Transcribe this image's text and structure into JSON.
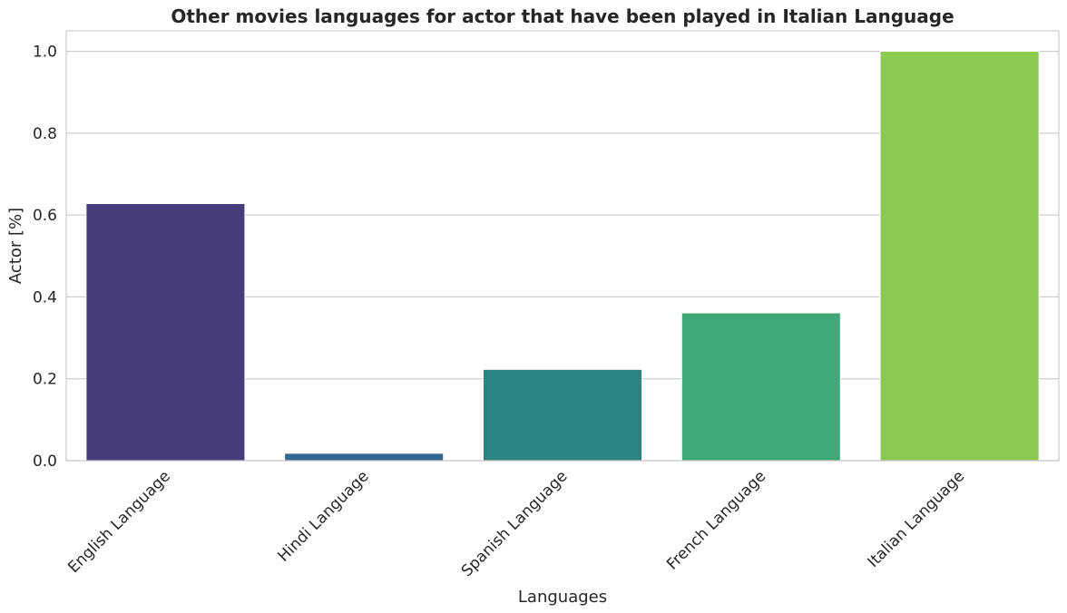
{
  "chart_data": {
    "type": "bar",
    "title": "Other movies languages for actor that have been played in Italian Language",
    "xlabel": "Languages",
    "ylabel": "Actor [%]",
    "categories": [
      "English Language",
      "Hindi Language",
      "Spanish Language",
      "French Language",
      "Italian Language"
    ],
    "values": [
      0.628,
      0.018,
      0.223,
      0.361,
      1.0
    ],
    "colors": [
      "#483d7c",
      "#31688e",
      "#2b8480",
      "#40a877",
      "#8bc84f"
    ],
    "ylim": [
      0,
      1.05
    ],
    "yticks": [
      0.0,
      0.2,
      0.4,
      0.6,
      0.8,
      1.0
    ],
    "ytick_labels": [
      "0.0",
      "0.2",
      "0.4",
      "0.6",
      "0.8",
      "1.0"
    ],
    "grid": "horizontal",
    "legend": "none"
  }
}
